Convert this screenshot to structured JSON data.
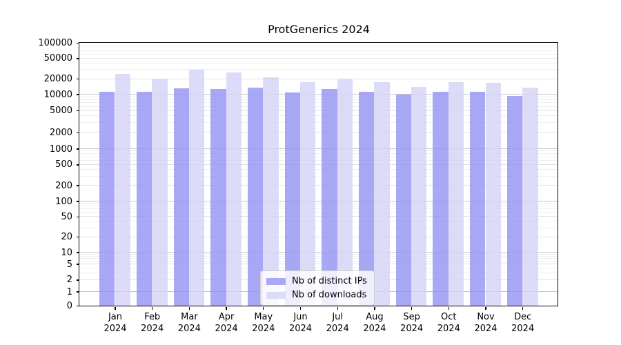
{
  "chart_data": {
    "type": "bar",
    "title": "ProtGenerics 2024",
    "months": [
      "Jan",
      "Feb",
      "Mar",
      "Apr",
      "May",
      "Jun",
      "Jul",
      "Aug",
      "Sep",
      "Oct",
      "Nov",
      "Dec"
    ],
    "year": "2024",
    "series": [
      {
        "name": "Nb of distinct IPs",
        "color": "#a8a8f7",
        "fill": "rgba(146,146,244,0.8)",
        "values": [
          11000,
          11300,
          13100,
          12600,
          13500,
          10800,
          12800,
          11300,
          9900,
          11200,
          11200,
          9400
        ]
      },
      {
        "name": "Nb of downloads",
        "color": "#dcdcf8",
        "fill": "rgba(211,211,246,0.8)",
        "values": [
          25000,
          20000,
          30300,
          26500,
          21600,
          17100,
          19600,
          17100,
          14000,
          17200,
          16900,
          13400
        ]
      }
    ],
    "y_ticks": [
      0,
      1,
      2,
      5,
      10,
      20,
      50,
      100,
      200,
      500,
      1000,
      2000,
      5000,
      10000,
      20000,
      50000,
      100000
    ],
    "ylim": [
      0,
      100000
    ],
    "yscale": "log-with-zero",
    "grid": "horizontal",
    "legend_position": "lower center"
  }
}
